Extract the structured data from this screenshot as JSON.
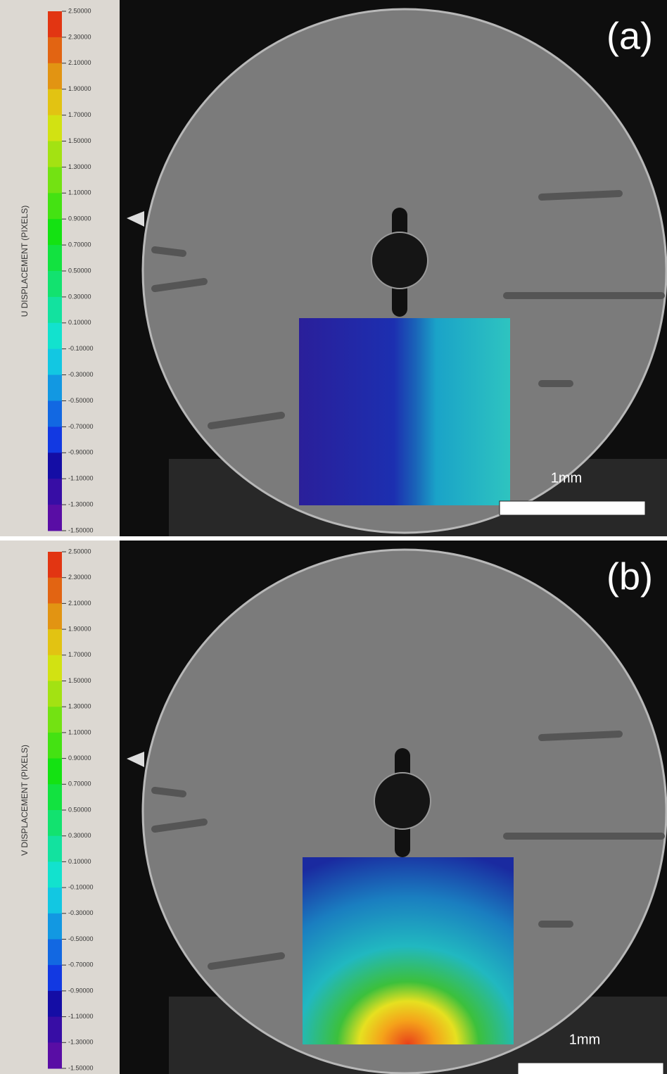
{
  "panels": [
    {
      "label": "(a)",
      "colorbar_title": "U DISPLACEMENT (PIXELS)",
      "colorbar_ticks": [
        "2.50000",
        "2.30000",
        "2.10000",
        "1.90000",
        "1.70000",
        "1.50000",
        "1.30000",
        "1.10000",
        "0.90000",
        "0.70000",
        "0.50000",
        "0.30000",
        "0.10000",
        "-0.10000",
        "-0.30000",
        "-0.50000",
        "-0.70000",
        "-0.90000",
        "-1.10000",
        "-1.30000",
        "-1.50000"
      ],
      "scale_bar": "1mm"
    },
    {
      "label": "(b)",
      "colorbar_title": "V DISPLACEMENT (PIXELS)",
      "colorbar_ticks": [
        "2.50000",
        "2.30000",
        "2.10000",
        "1.90000",
        "1.70000",
        "1.50000",
        "1.30000",
        "1.10000",
        "0.90000",
        "0.70000",
        "0.50000",
        "0.30000",
        "0.10000",
        "-0.10000",
        "-0.30000",
        "-0.50000",
        "-0.70000",
        "-0.90000",
        "-1.10000",
        "-1.30000",
        "-1.50000"
      ],
      "scale_bar": "1mm"
    }
  ]
}
